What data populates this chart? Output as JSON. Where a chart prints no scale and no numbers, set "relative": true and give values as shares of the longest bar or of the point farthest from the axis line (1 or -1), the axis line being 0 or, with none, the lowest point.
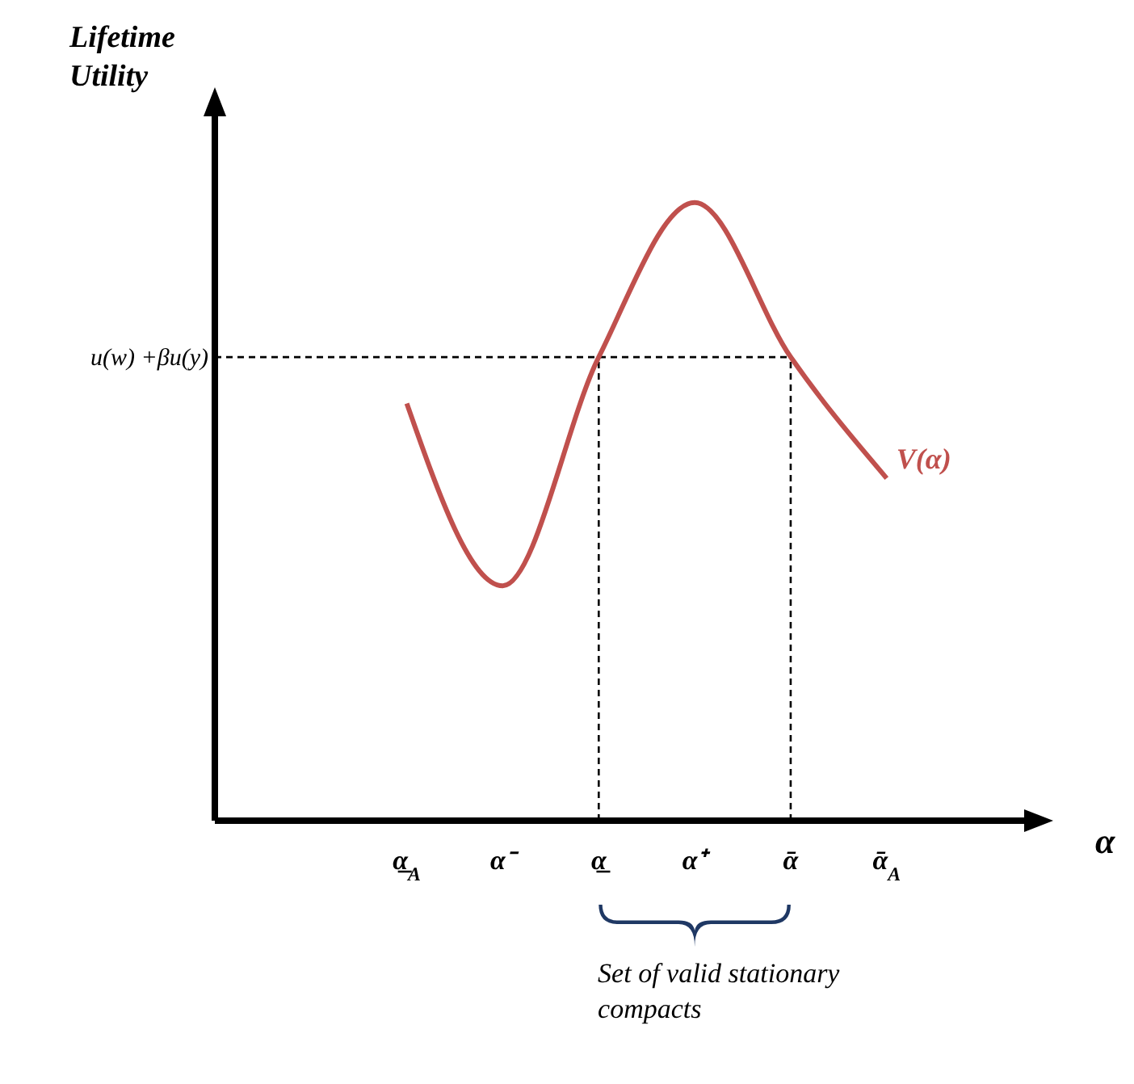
{
  "chart_data": {
    "type": "line",
    "relative": true,
    "xlabel": "α",
    "categories": [
      "α̲$_{A}$",
      "α⁻",
      "α̲",
      "α⁺",
      "ᾱ",
      "ᾱ$_{A}$"
    ],
    "series": [
      {
        "name": "V(α)",
        "color": "#c0504d",
        "values": [
          0.675,
          0.38,
          0.75,
          1,
          0.75,
          0.554
        ]
      }
    ],
    "ref_lines": [
      {
        "axis": "y",
        "value": 0.75,
        "label": "u(w) +βu(y)",
        "color": "#000000",
        "line_style": "dashed"
      },
      {
        "axis": "x",
        "value": "α̲",
        "label": null,
        "color": "#000000",
        "line_style": "dashed"
      },
      {
        "axis": "x",
        "value": "ᾱ",
        "label": null,
        "color": "#000000",
        "line_style": "dashed"
      }
    ],
    "annotations": [
      "Lifetime Utility",
      "Set of valid stationary compacts"
    ],
    "marker": "none",
    "line_style": "solid"
  }
}
